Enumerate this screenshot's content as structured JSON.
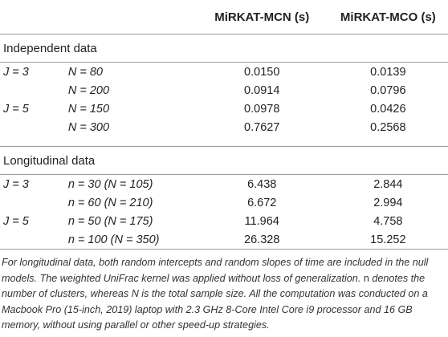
{
  "header": {
    "col_mcn": "MiRKAT-MCN (s)",
    "col_mco": "MiRKAT-MCO (s)"
  },
  "independent": {
    "title": "Independent data",
    "rows": [
      {
        "j": "J = 3",
        "n": "N = 80",
        "mcn": "0.0150",
        "mco": "0.0139"
      },
      {
        "j": "",
        "n": "N = 200",
        "mcn": "0.0914",
        "mco": "0.0796"
      },
      {
        "j": "J = 5",
        "n": "N = 150",
        "mcn": "0.0978",
        "mco": "0.0426"
      },
      {
        "j": "",
        "n": "N = 300",
        "mcn": "0.7627",
        "mco": "0.2568"
      }
    ]
  },
  "longitudinal": {
    "title": "Longitudinal data",
    "rows": [
      {
        "j": "J = 3",
        "n": "n = 30 (N = 105)",
        "mcn": "6.438",
        "mco": "2.844"
      },
      {
        "j": "",
        "n": "n = 60 (N = 210)",
        "mcn": "6.672",
        "mco": "2.994"
      },
      {
        "j": "J = 5",
        "n": "n = 50 (N = 175)",
        "mcn": "11.964",
        "mco": "4.758"
      },
      {
        "j": "",
        "n": "n = 100 (N = 350)",
        "mcn": "26.328",
        "mco": "15.252"
      }
    ]
  },
  "footnote": {
    "part1": "For longitudinal data, both random intercepts and random slopes of time are included in the null models. The weighted UniFrac kernel was applied without loss of generalization.",
    "n_symbol": "n",
    "part2": "denotes the number of clusters, whereas N is the total sample size. All the computation was conducted on a Macbook Pro (15-inch, 2019) laptop with 2.3 GHz 8-Core Intel Core i9 processor and 16 GB memory, without using parallel or other speed-up strategies."
  }
}
